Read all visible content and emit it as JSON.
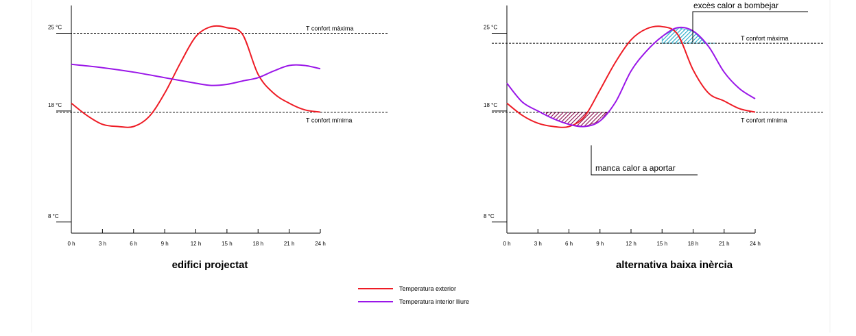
{
  "colors": {
    "exterior": "#ee1c25",
    "interior": "#9a16e8",
    "hatch_deficit": "#8a0a4e",
    "hatch_excess": "#1fa8c8"
  },
  "legend": [
    {
      "label": "Temperatura exterior",
      "color_key": "exterior"
    },
    {
      "label": "Temperatura interior lliure",
      "color_key": "interior"
    }
  ],
  "chart_data": [
    {
      "type": "line",
      "title": "edifici projectat",
      "xlabel": "",
      "ylabel": "",
      "x_ticks": [
        0,
        3,
        6,
        9,
        12,
        15,
        18,
        21,
        24
      ],
      "x_tick_labels": [
        "0 h",
        "3 h",
        "6 h",
        "9 h",
        "12 h",
        "15 h",
        "18 h",
        "21 h",
        "24 h"
      ],
      "y_ticks": [
        8,
        18,
        25
      ],
      "y_tick_labels": [
        "8 °C",
        "18 °C",
        "25 °C"
      ],
      "ylim": [
        7,
        27.5
      ],
      "reference_lines": [
        {
          "label": "T confort màxima",
          "y": 25
        },
        {
          "label": "T confort mínima",
          "y": 17.9
        }
      ],
      "series": [
        {
          "name": "Temperatura exterior",
          "color_key": "exterior",
          "x": [
            0,
            1.5,
            3,
            4.5,
            6,
            7.5,
            9,
            10.5,
            12,
            13.5,
            15,
            16.5,
            18,
            19.5,
            21,
            22.5,
            24
          ],
          "y": [
            18.7,
            17.6,
            16.8,
            16.6,
            16.6,
            17.5,
            19.6,
            22.3,
            24.7,
            25.6,
            25.5,
            24.9,
            21.3,
            19.6,
            18.7,
            18.1,
            17.9
          ]
        },
        {
          "name": "Temperatura interior lliure",
          "color_key": "interior",
          "x": [
            0,
            3,
            6,
            9,
            12,
            13.5,
            15,
            16.5,
            18,
            19.5,
            21,
            22.5,
            24
          ],
          "y": [
            22.2,
            21.9,
            21.5,
            21.0,
            20.5,
            20.3,
            20.4,
            20.7,
            21.0,
            21.6,
            22.1,
            22.1,
            21.8
          ]
        }
      ]
    },
    {
      "type": "line",
      "title": "alternativa baixa inèrcia",
      "xlabel": "",
      "ylabel": "",
      "x_ticks": [
        0,
        3,
        6,
        9,
        12,
        15,
        18,
        21,
        24
      ],
      "x_tick_labels": [
        "0 h",
        "3 h",
        "6 h",
        "9 h",
        "12 h",
        "15 h",
        "18 h",
        "21 h",
        "24 h"
      ],
      "y_ticks": [
        8,
        18,
        25
      ],
      "y_tick_labels": [
        "8 °C",
        "18 °C",
        "25 °C"
      ],
      "ylim": [
        7,
        27.5
      ],
      "reference_lines": [
        {
          "label": "T confort màxima",
          "y": 24.1
        },
        {
          "label": "T confort mínima",
          "y": 17.9
        }
      ],
      "annotations": [
        {
          "text": "excès calor a bombejar",
          "region": "above T confort màxima, 15 h – 20 h"
        },
        {
          "text": "manca calor a aportar",
          "region": "below T confort mínima, 3.5 h – 10 h"
        }
      ],
      "series": [
        {
          "name": "Temperatura exterior",
          "color_key": "exterior",
          "x": [
            0,
            1.5,
            3,
            4.5,
            6,
            7.5,
            9,
            10.5,
            12,
            13.5,
            15,
            16.5,
            18,
            19.5,
            21,
            22.5,
            24
          ],
          "y": [
            18.7,
            17.6,
            16.9,
            16.6,
            16.6,
            17.5,
            19.9,
            22.4,
            24.4,
            25.4,
            25.6,
            24.9,
            21.7,
            19.6,
            18.9,
            18.2,
            17.9
          ]
        },
        {
          "name": "Temperatura interior lliure",
          "color_key": "interior",
          "x": [
            0,
            1.5,
            3,
            4.5,
            6,
            7.5,
            9,
            10.5,
            12,
            13.5,
            15,
            16.5,
            18,
            19.5,
            21,
            22.5,
            24
          ],
          "y": [
            20.5,
            18.8,
            18.0,
            17.3,
            16.8,
            16.6,
            17.1,
            18.8,
            21.6,
            23.4,
            24.7,
            25.5,
            25.2,
            23.8,
            21.5,
            20.0,
            19.1
          ]
        }
      ]
    }
  ]
}
